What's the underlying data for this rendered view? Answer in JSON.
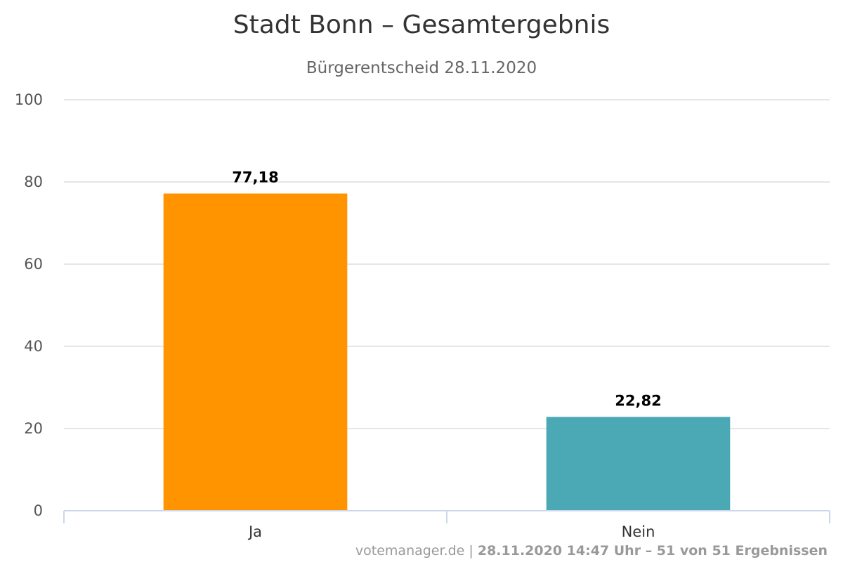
{
  "chart_data": {
    "type": "bar",
    "title": "Stadt Bonn – Gesamtergebnis",
    "subtitle": "Bürgerentscheid 28.11.2020",
    "categories": [
      "Ja",
      "Nein"
    ],
    "values": [
      77.18,
      22.82
    ],
    "data_labels": [
      "77,18",
      "22,82"
    ],
    "colors": [
      "#ff9400",
      "#4ba8b5"
    ],
    "ylim": [
      0,
      100
    ],
    "yticks": [
      0,
      20,
      40,
      60,
      80,
      100
    ],
    "grid": true,
    "legend": "none"
  },
  "credits": {
    "source": "votemanager.de",
    "separator": " | ",
    "detail": "28.11.2020 14:47 Uhr – 51 von 51 Ergebnissen"
  }
}
